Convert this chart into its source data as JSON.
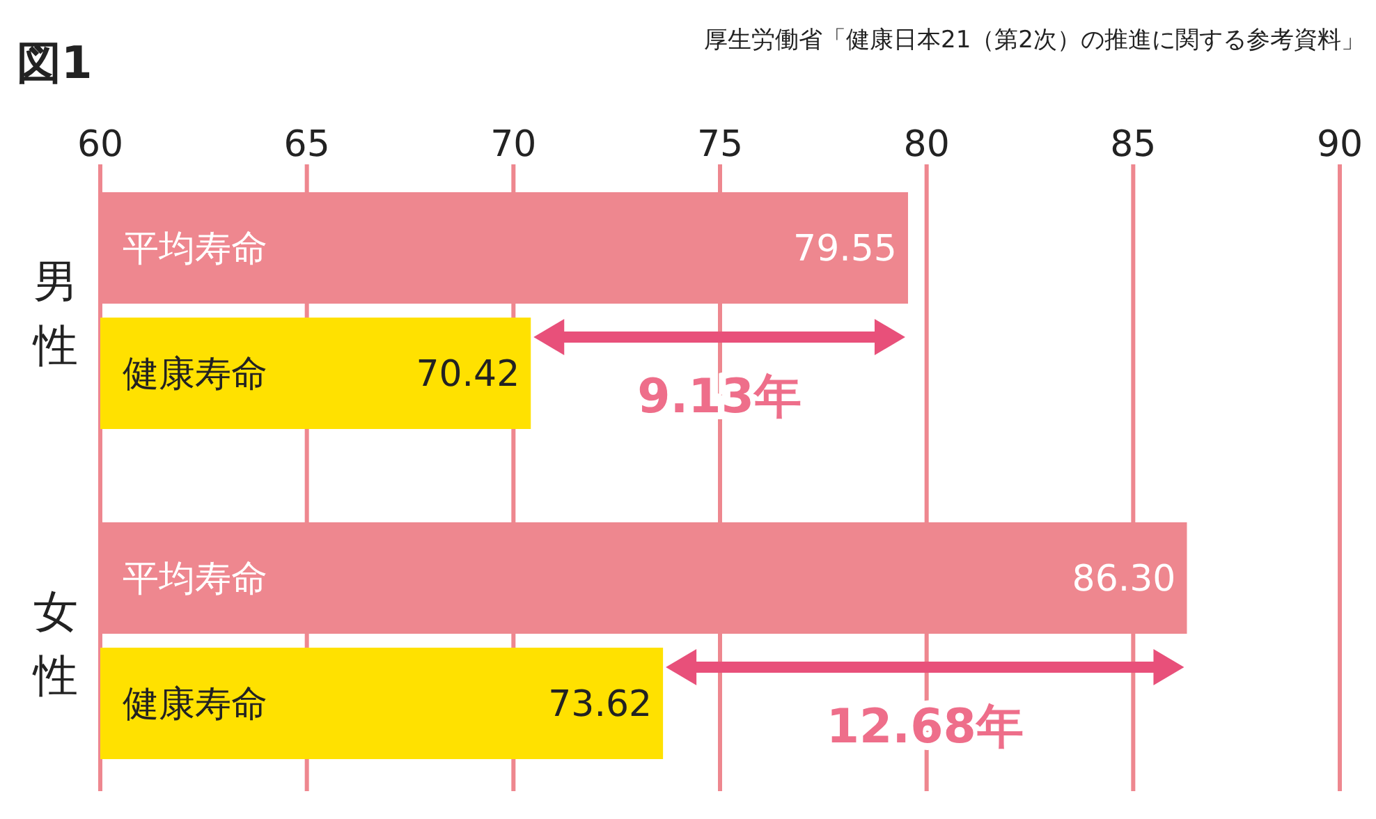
{
  "chart_data": {
    "type": "bar",
    "orientation": "horizontal",
    "title": "図1",
    "categories": [
      "男性",
      "女性"
    ],
    "series": [
      {
        "name": "平均寿命",
        "color": "#ee878f",
        "values": [
          79.55,
          86.3
        ],
        "value_labels": [
          "79.55",
          "86.30"
        ]
      },
      {
        "name": "健康寿命",
        "color": "#ffe100",
        "values": [
          70.42,
          73.62
        ],
        "value_labels": [
          "70.42",
          "73.62"
        ]
      }
    ],
    "xlim": [
      60,
      90
    ],
    "xticks": [
      60,
      65,
      70,
      75,
      80,
      85,
      90
    ],
    "grid": "x",
    "legend": false,
    "data_labels": true,
    "annotations": [
      "厚生労働省「健康日本21（第2次）の推進に関する参考資料」",
      "9.13年",
      "12.68年"
    ]
  }
}
